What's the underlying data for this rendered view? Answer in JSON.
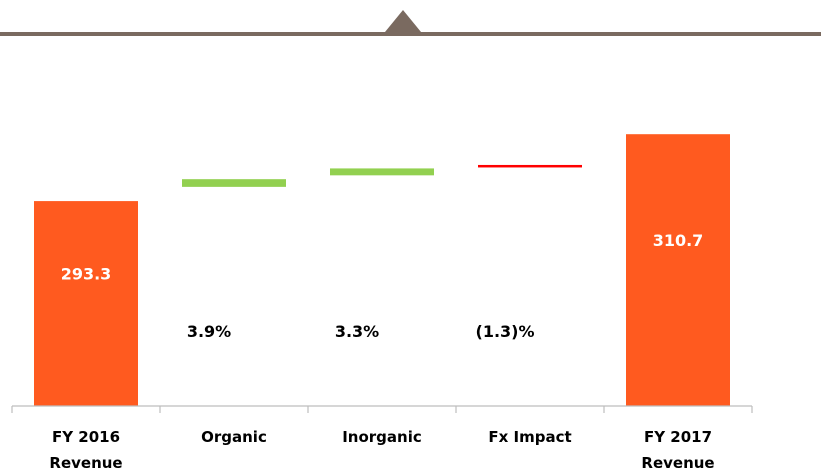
{
  "chart_data": {
    "type": "bar",
    "subtype": "waterfall",
    "categories": [
      [
        "FY 2016",
        "Revenue"
      ],
      [
        "Organic"
      ],
      [
        "Inorganic"
      ],
      [
        "Fx Impact"
      ],
      [
        "FY 2017",
        "Revenue"
      ]
    ],
    "totals": [
      {
        "category_index": 0,
        "value": 293.3,
        "label": "293.3"
      },
      {
        "category_index": 4,
        "value": 310.7,
        "label": "310.7"
      }
    ],
    "changes": [
      {
        "category_index": 1,
        "label": "3.9%",
        "start": 297.0,
        "end": 299.0,
        "direction": "increase"
      },
      {
        "category_index": 2,
        "label": "3.3%",
        "start": 300.0,
        "end": 301.8,
        "direction": "increase"
      },
      {
        "category_index": 3,
        "label": "(1.3)%",
        "start": 302.7,
        "end": 302.5,
        "direction": "decrease"
      }
    ],
    "ylim": [
      240,
      330
    ],
    "grid": false,
    "legend": "none",
    "title": "",
    "xlabel": "",
    "ylabel": ""
  },
  "colors": {
    "total": "#ff5a1f",
    "increase": "#92d050",
    "decrease": "#ff0000",
    "divider": "#7a6a60",
    "axis": "#bdbdbd"
  }
}
